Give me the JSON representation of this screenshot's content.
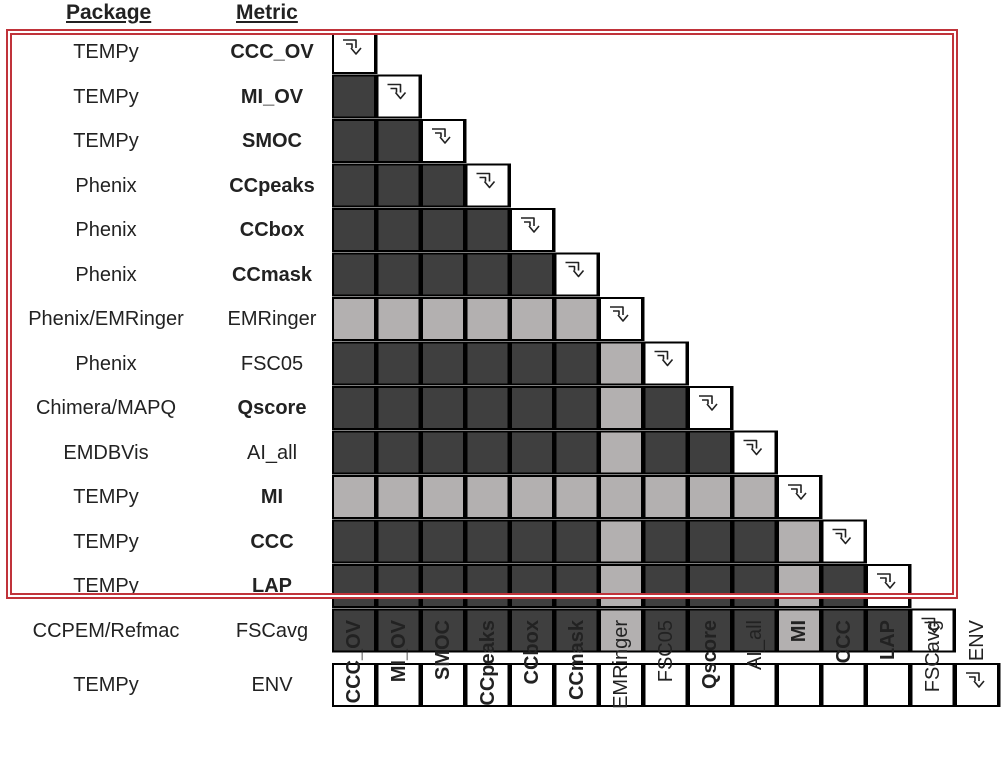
{
  "headers": {
    "package": "Package",
    "metric": "Metric"
  },
  "rows": [
    {
      "package": "TEMPy",
      "metric": "CCC_OV",
      "bold": true
    },
    {
      "package": "TEMPy",
      "metric": "MI_OV",
      "bold": true
    },
    {
      "package": "TEMPy",
      "metric": "SMOC",
      "bold": true
    },
    {
      "package": "Phenix",
      "metric": "CCpeaks",
      "bold": true
    },
    {
      "package": "Phenix",
      "metric": "CCbox",
      "bold": true
    },
    {
      "package": "Phenix",
      "metric": "CCmask",
      "bold": true
    },
    {
      "package": "Phenix/EMRinger",
      "metric": "EMRinger",
      "bold": false
    },
    {
      "package": "Phenix",
      "metric": "FSC05",
      "bold": false
    },
    {
      "package": "Chimera/MAPQ",
      "metric": "Qscore",
      "bold": true
    },
    {
      "package": "EMDBVis",
      "metric": "AI_all",
      "bold": false
    },
    {
      "package": "TEMPy",
      "metric": "MI",
      "bold": true
    },
    {
      "package": "TEMPy",
      "metric": "CCC",
      "bold": true
    },
    {
      "package": "TEMPy",
      "metric": "LAP",
      "bold": true
    },
    {
      "package": "CCPEM/Refmac",
      "metric": "FSCavg",
      "bold": false
    },
    {
      "package": "TEMPy",
      "metric": "ENV",
      "bold": false
    }
  ],
  "columns": [
    {
      "label": "CCC_OV",
      "bold": true
    },
    {
      "label": "MI_OV",
      "bold": true
    },
    {
      "label": "SMOC",
      "bold": true
    },
    {
      "label": "CCpeaks",
      "bold": true
    },
    {
      "label": "CCbox",
      "bold": true
    },
    {
      "label": "CCmask",
      "bold": true
    },
    {
      "label": "EMRinger",
      "bold": false
    },
    {
      "label": "FSC05",
      "bold": false
    },
    {
      "label": "Qscore",
      "bold": true
    },
    {
      "label": "AI_all",
      "bold": false
    },
    {
      "label": "MI",
      "bold": true
    },
    {
      "label": "CCC",
      "bold": true
    },
    {
      "label": "LAP",
      "bold": true
    },
    {
      "label": "FSCavg",
      "bold": false
    },
    {
      "label": "ENV",
      "bold": false
    }
  ],
  "cell_shades": [
    [],
    [
      "d"
    ],
    [
      "d",
      "d"
    ],
    [
      "d",
      "d",
      "d"
    ],
    [
      "d",
      "d",
      "d",
      "d"
    ],
    [
      "d",
      "d",
      "d",
      "d",
      "d"
    ],
    [
      "l",
      "l",
      "l",
      "l",
      "l",
      "l"
    ],
    [
      "d",
      "d",
      "d",
      "d",
      "d",
      "d",
      "l"
    ],
    [
      "d",
      "d",
      "d",
      "d",
      "d",
      "d",
      "l",
      "d"
    ],
    [
      "d",
      "d",
      "d",
      "d",
      "d",
      "d",
      "l",
      "d",
      "d"
    ],
    [
      "l",
      "l",
      "l",
      "l",
      "l",
      "l",
      "l",
      "l",
      "l",
      "l"
    ],
    [
      "d",
      "d",
      "d",
      "d",
      "d",
      "d",
      "l",
      "d",
      "d",
      "d",
      "l"
    ],
    [
      "d",
      "d",
      "d",
      "d",
      "d",
      "d",
      "l",
      "d",
      "d",
      "d",
      "l",
      "d"
    ],
    [
      "d",
      "d",
      "d",
      "d",
      "d",
      "d",
      "l",
      "d",
      "d",
      "d",
      "l",
      "d",
      "d"
    ],
    [
      "w",
      "w",
      "w",
      "w",
      "w",
      "w",
      "w",
      "w",
      "w",
      "w",
      "w",
      "w",
      "w",
      "w"
    ]
  ],
  "colors": {
    "dark": "#3f3f3f",
    "light": "#b3b0b0",
    "white": "#ffffff",
    "border": "#000000",
    "highlight": "#c0333a"
  },
  "diagonal_icon": "sort-arrow-icon"
}
